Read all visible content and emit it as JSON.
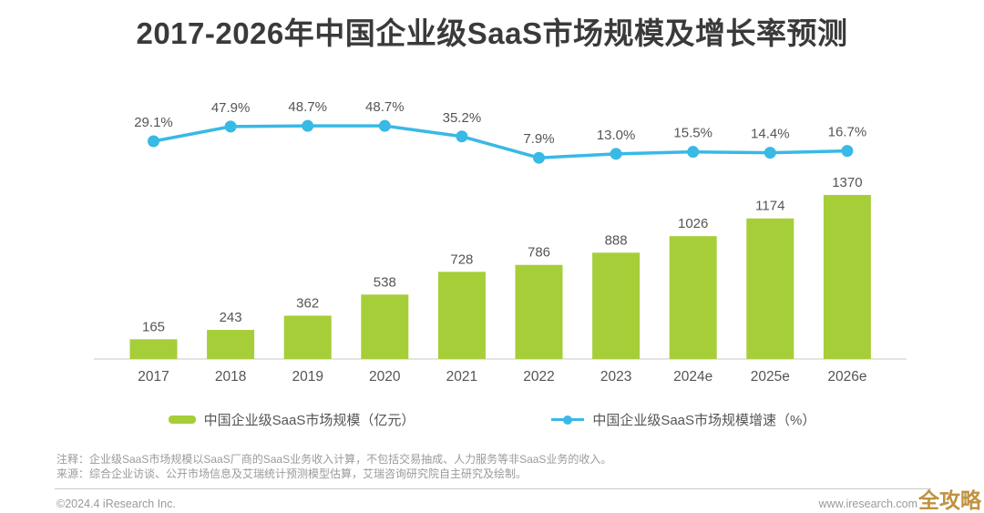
{
  "title": "2017-2026年中国企业级SaaS市场规模及增长率预测",
  "chart_data": {
    "type": "bar",
    "title": "2017-2026年中国企业级SaaS市场规模及增长率预测",
    "categories": [
      "2017",
      "2018",
      "2019",
      "2020",
      "2021",
      "2022",
      "2023",
      "2024e",
      "2025e",
      "2026e"
    ],
    "series": [
      {
        "name": "中国企业级SaaS市场规模（亿元）",
        "type": "bar",
        "values": [
          165,
          243,
          362,
          538,
          728,
          786,
          888,
          1026,
          1174,
          1370
        ],
        "labels": [
          "165",
          "243",
          "362",
          "538",
          "728",
          "786",
          "888",
          "1026",
          "1174",
          "1370"
        ],
        "color": "#a6ce39"
      },
      {
        "name": "中国企业级SaaS市场规模增速（%）",
        "type": "line",
        "values": [
          29.1,
          47.9,
          48.7,
          48.7,
          35.2,
          7.9,
          13.0,
          15.5,
          14.4,
          16.7
        ],
        "labels": [
          "29.1%",
          "47.9%",
          "48.7%",
          "48.7%",
          "35.2%",
          "7.9%",
          "13.0%",
          "15.5%",
          "14.4%",
          "16.7%"
        ],
        "color": "#38b9e6"
      }
    ],
    "xlabel": "",
    "ylabel": "",
    "grid": false,
    "legend_position": "bottom",
    "bar_axis_range": [
      0,
      1400
    ],
    "line_axis_range": [
      0,
      60
    ]
  },
  "legend": {
    "bar_label": "中国企业级SaaS市场规模（亿元）",
    "line_label": "中国企业级SaaS市场规模增速（%）"
  },
  "notes": {
    "line1": "注释：企业级SaaS市场规模以SaaS厂商的SaaS业务收入计算，不包括交易抽成、人力服务等非SaaS业务的收入。",
    "line2": "来源：综合企业访谈、公开市场信息及艾瑞统计预测模型估算，艾瑞咨询研究院自主研究及绘制。"
  },
  "footer": {
    "copyright": "©2024.4 iResearch Inc.",
    "website": "www.iresearch.com",
    "watermark": "全攻略"
  },
  "colors": {
    "bar": "#a6ce39",
    "line": "#38b9e6",
    "title_text": "#3a3a3a",
    "label_text": "#555555",
    "note_text": "#9a9a9a",
    "watermark": "#c0913f",
    "axis_line": "#c9c9c9",
    "background": "#ffffff"
  }
}
